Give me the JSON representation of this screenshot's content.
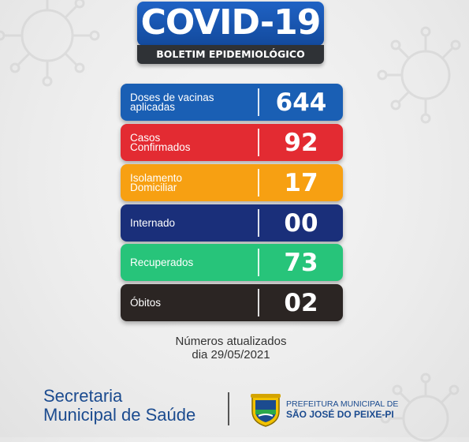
{
  "header": {
    "title": "COVID-19",
    "subtitle": "BOLETIM EPIDEMIOLÓGICO"
  },
  "stats": [
    {
      "line1": "Doses de vacinas",
      "line2": "aplicadas",
      "value": "644",
      "color": "#1a5fb4"
    },
    {
      "line1": "Casos",
      "line2": "Confirmados",
      "value": "92",
      "color": "#e32b32"
    },
    {
      "line1": "Isolamento",
      "line2": "Domiciliar",
      "value": "17",
      "color": "#f7a012"
    },
    {
      "line1": "Internado",
      "line2": "",
      "value": "00",
      "color": "#1a2f7a"
    },
    {
      "line1": "Recuperados",
      "line2": "",
      "value": "73",
      "color": "#27c47a"
    },
    {
      "line1": "Óbitos",
      "line2": "",
      "value": "02",
      "color": "#2b2523"
    }
  ],
  "footer": {
    "updated_line1": "Números atualizados",
    "updated_line2": "dia 29/05/2021",
    "secretaria_line1": "Secretaria",
    "secretaria_line2": "Municipal de Saúde",
    "prefeitura_line1": "PREFEITURA MUNICIPAL DE",
    "prefeitura_line2": "SÃO JOSÉ DO PEIXE-PI"
  },
  "icons": [
    "virus-icon",
    "crest-icon"
  ]
}
